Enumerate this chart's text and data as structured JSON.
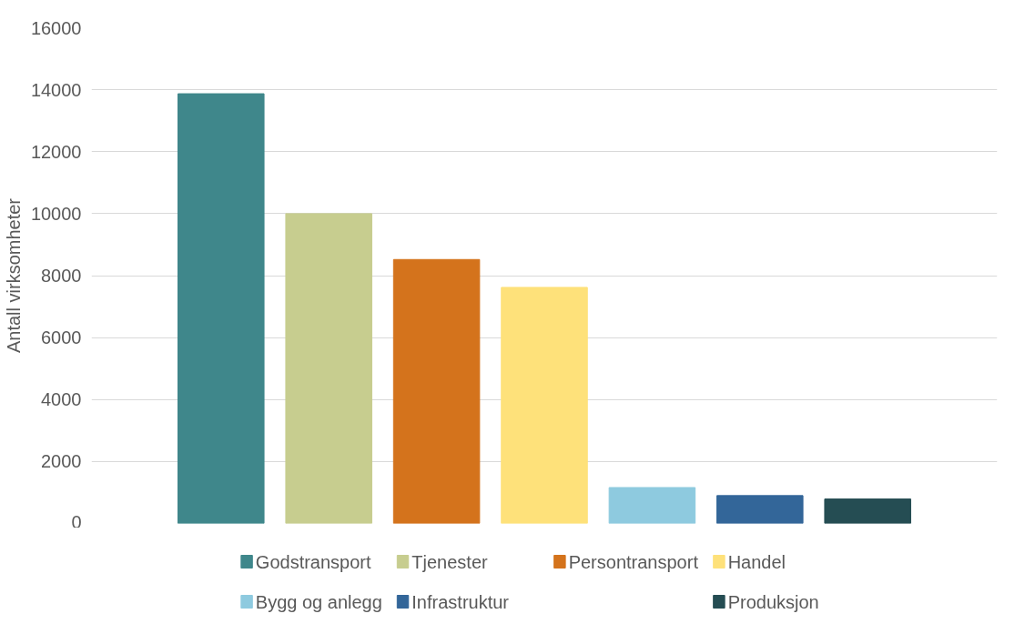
{
  "chart_data": {
    "type": "bar",
    "ylabel": "Antall virksomheter",
    "categories": [
      null
    ],
    "series": [
      {
        "name": "Godstransport",
        "color": "#3f878b",
        "values": [
          13870
        ]
      },
      {
        "name": "Tjenester",
        "color": "#c7cd8f",
        "values": [
          10000
        ]
      },
      {
        "name": "Persontransport",
        "color": "#d4731c",
        "values": [
          8520
        ]
      },
      {
        "name": "Handel",
        "color": "#fee17a",
        "values": [
          7620
        ]
      },
      {
        "name": "Bygg og anlegg",
        "color": "#8ecadf",
        "values": [
          1160
        ]
      },
      {
        "name": "Infrastruktur",
        "color": "#336699",
        "values": [
          900
        ]
      },
      {
        "name": "Produksjon",
        "color": "#254d53",
        "values": [
          790
        ]
      }
    ],
    "ylim": [
      0,
      16000
    ],
    "yticks": [
      0,
      2000,
      4000,
      6000,
      8000,
      10000,
      12000,
      14000,
      16000
    ],
    "grid": "y",
    "legend": "bottom",
    "tick_labels": "y"
  }
}
